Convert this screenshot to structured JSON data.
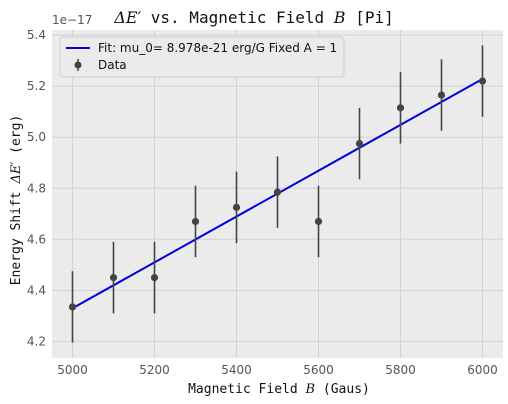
{
  "chart_data": {
    "type": "scatter",
    "title_math": "ΔE′",
    "title_mid": " vs. Magnetic Field ",
    "title_var": "B",
    "title_end": " [Pi]",
    "xlabel_text": "Magnetic Field ",
    "xlabel_var": "B",
    "xlabel_unit": " (Gaus)",
    "ylabel_text": "Energy Shift ",
    "ylabel_var": "ΔE′",
    "ylabel_unit": " (erg)",
    "y_offset_label": "1e−17",
    "xlim": [
      4950,
      6050
    ],
    "ylim": [
      4.135,
      5.42
    ],
    "xticks": [
      5000,
      5200,
      5400,
      5600,
      5800,
      6000
    ],
    "yticks": [
      4.2,
      4.4,
      4.6,
      4.8,
      5.0,
      5.2,
      5.4
    ],
    "ytick_labels": [
      "4.2",
      "4.4",
      "4.6",
      "4.8",
      "5.0",
      "5.2",
      "5.4"
    ],
    "grid": true,
    "legend_position": "top-left",
    "x": [
      5000,
      5100,
      5200,
      5300,
      5400,
      5500,
      5600,
      5700,
      5800,
      5900,
      6000
    ],
    "series": [
      {
        "name": "Data",
        "kind": "errorbar",
        "y": [
          4.335,
          4.45,
          4.45,
          4.67,
          4.725,
          4.785,
          4.67,
          4.975,
          5.115,
          5.165,
          5.22
        ],
        "yerr": [
          0.14,
          0.14,
          0.14,
          0.14,
          0.14,
          0.14,
          0.14,
          0.14,
          0.14,
          0.14,
          0.14
        ],
        "color": "#444444"
      },
      {
        "name": "Fit: mu_0= 8.978e-21 erg/G Fixed A = 1",
        "kind": "line",
        "x": [
          5000,
          6000
        ],
        "y": [
          4.33,
          5.228
        ],
        "color": "#0000dd"
      }
    ],
    "background": "#ebebeb",
    "grid_color": "#d2d2d2"
  }
}
